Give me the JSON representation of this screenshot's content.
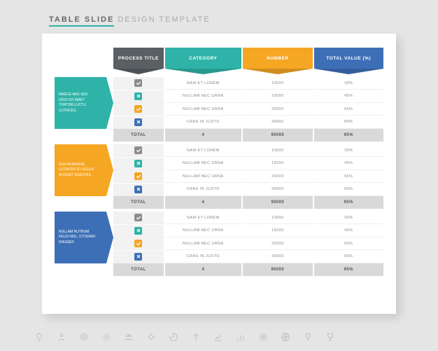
{
  "title": {
    "strong": "TABLE  SLIDE",
    "light": "DESIGN TEMPLATE"
  },
  "colors": {
    "teal": "#2fb3a8",
    "orange": "#f5a623",
    "blue": "#3d6fb6",
    "gray_header": "#5a5f63",
    "check_gray": "#8c8c8c",
    "check_teal": "#2fb3a8",
    "check_orange": "#f5a623",
    "check_blue": "#3d6fb6",
    "total_bg": "#d9d9d9",
    "card_bg": "#ffffff",
    "page_bg": "#e5e5e5"
  },
  "headers": [
    {
      "label": "PROCESS TITLE",
      "bg": "#5a5f63"
    },
    {
      "label": "CATEGORY",
      "bg": "#2fb3a8"
    },
    {
      "label": "NUMBER",
      "bg": "#f5a623"
    },
    {
      "label": "TOTAL VALUE (%)",
      "bg": "#3d6fb6"
    }
  ],
  "sections": [
    {
      "side_bg": "#2fb3a8",
      "side_text": "MAECE-NAS SED ODIO SIT AMET TORTOR LUCTU ULTRICES.",
      "rows": [
        {
          "chk_bg": "#8c8c8c",
          "chk": "✓",
          "category": "NAM ET LOREM",
          "number": "10000",
          "value": "30%"
        },
        {
          "chk_bg": "#2fb3a8",
          "chk": "✕",
          "category": "NULLAM NEC URNA",
          "number": "15000",
          "value": "45%"
        },
        {
          "chk_bg": "#f5a623",
          "chk": "✓",
          "category": "NULLAM NEC URNA",
          "number": "25000",
          "value": "55%"
        },
        {
          "chk_bg": "#3d6fb6",
          "chk": "✕",
          "category": "CRAS IN JUSTO",
          "number": "40000",
          "value": "80%"
        }
      ],
      "total": {
        "label": "TOTAL",
        "category": "4",
        "number": "90000",
        "value": "95%"
      }
    },
    {
      "side_bg": "#f5a623",
      "side_text": "SUS-PENDISSE ULTRICES ID LIGULA ALIQUET EGESTAS.",
      "rows": [
        {
          "chk_bg": "#8c8c8c",
          "chk": "✓",
          "category": "NAM ET LOREM",
          "number": "10000",
          "value": "30%"
        },
        {
          "chk_bg": "#2fb3a8",
          "chk": "✕",
          "category": "NULLAM NEC URNA",
          "number": "15000",
          "value": "45%"
        },
        {
          "chk_bg": "#f5a623",
          "chk": "✓",
          "category": "NULLAM NEC URNA",
          "number": "25000",
          "value": "55%"
        },
        {
          "chk_bg": "#3d6fb6",
          "chk": "✕",
          "category": "CRAS IN JUSTO",
          "number": "40000",
          "value": "80%"
        }
      ],
      "total": {
        "label": "TOTAL",
        "category": "4",
        "number": "90000",
        "value": "95%"
      }
    },
    {
      "side_bg": "#3d6fb6",
      "side_text": "NULLAM RUTRUM FELIS NISL, ICTIGRAV IDASSEP.",
      "rows": [
        {
          "chk_bg": "#8c8c8c",
          "chk": "✓",
          "category": "NAM ET LOREM",
          "number": "10000",
          "value": "30%"
        },
        {
          "chk_bg": "#2fb3a8",
          "chk": "✕",
          "category": "NULLAM NEC URNA",
          "number": "15000",
          "value": "45%"
        },
        {
          "chk_bg": "#f5a623",
          "chk": "✓",
          "category": "NULLAM NEC URNA",
          "number": "25000",
          "value": "55%"
        },
        {
          "chk_bg": "#3d6fb6",
          "chk": "✕",
          "category": "CRAS IN JUSTO",
          "number": "40000",
          "value": "80%"
        }
      ],
      "total": {
        "label": "TOTAL",
        "category": "4",
        "number": "90000",
        "value": "95%"
      }
    }
  ],
  "footer_icons": [
    "bulb",
    "person",
    "donut",
    "gear",
    "people",
    "gear2",
    "pie",
    "arrow-up",
    "chart",
    "bars",
    "target",
    "globe",
    "trophy",
    "trophy2"
  ]
}
